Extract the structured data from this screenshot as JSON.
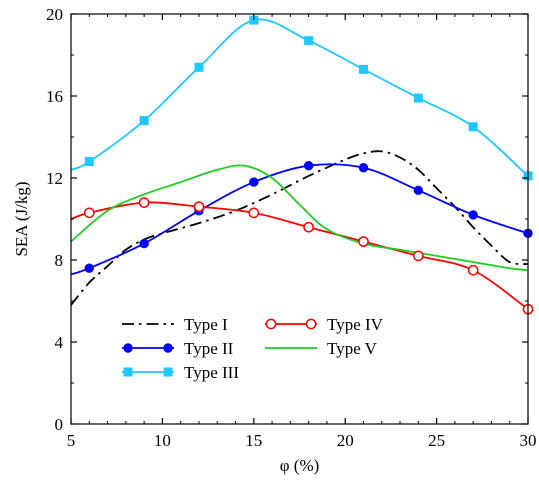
{
  "chart_data": {
    "type": "line",
    "xlabel": "φ (%)",
    "ylabel": "SEA (J/kg)",
    "xlim": [
      5,
      30
    ],
    "ylim": [
      0,
      20
    ],
    "xticks": [
      5,
      10,
      15,
      20,
      25,
      30
    ],
    "yticks": [
      0,
      4,
      8,
      12,
      16,
      20
    ],
    "grid": false,
    "legend_position": "bottom-left",
    "series": [
      {
        "name": "Type I",
        "color": "#000000",
        "style": "dash-dot",
        "marker": "none",
        "x": [
          5,
          6,
          7,
          8,
          9,
          10,
          12,
          14,
          16,
          18,
          20,
          21,
          22,
          23,
          24,
          25,
          26,
          27,
          28,
          29,
          30
        ],
        "y": [
          5.8,
          6.9,
          7.7,
          8.5,
          9.0,
          9.3,
          9.8,
          10.4,
          11.2,
          12.1,
          12.9,
          13.2,
          13.3,
          13.0,
          12.4,
          11.5,
          10.6,
          9.6,
          8.7,
          7.9,
          7.8
        ]
      },
      {
        "name": "Type II",
        "color": "#0000ff",
        "style": "solid",
        "marker": "filled-circle",
        "x": [
          5,
          6,
          9,
          12,
          15,
          18,
          21,
          24,
          27,
          30
        ],
        "y": [
          7.3,
          7.6,
          8.8,
          10.4,
          11.8,
          12.6,
          12.5,
          11.4,
          10.2,
          9.3
        ],
        "marker_x": [
          6,
          9,
          12,
          15,
          18,
          21,
          24,
          27,
          30
        ],
        "marker_y": [
          7.6,
          8.8,
          10.4,
          11.8,
          12.6,
          12.5,
          11.4,
          10.2,
          9.3
        ]
      },
      {
        "name": "Type III",
        "color": "#1ec8ff",
        "style": "solid",
        "marker": "filled-square",
        "x": [
          5,
          6,
          9,
          12,
          15,
          18,
          21,
          24,
          27,
          30
        ],
        "y": [
          12.4,
          12.8,
          14.8,
          17.4,
          19.7,
          18.7,
          17.3,
          15.9,
          14.5,
          12.1
        ],
        "marker_x": [
          6,
          9,
          12,
          15,
          18,
          21,
          24,
          27,
          30
        ],
        "marker_y": [
          12.8,
          14.8,
          17.4,
          19.7,
          18.7,
          17.3,
          15.9,
          14.5,
          12.1
        ]
      },
      {
        "name": "Type IV",
        "color": "#ff0000",
        "style": "solid",
        "marker": "open-circle",
        "x": [
          5,
          6,
          9,
          12,
          15,
          18,
          21,
          24,
          27,
          30
        ],
        "y": [
          10.0,
          10.3,
          10.8,
          10.6,
          10.3,
          9.6,
          8.9,
          8.2,
          7.5,
          5.6
        ],
        "marker_x": [
          6,
          9,
          12,
          15,
          18,
          21,
          24,
          27,
          30
        ],
        "marker_y": [
          10.3,
          10.8,
          10.6,
          10.3,
          9.6,
          8.9,
          8.2,
          7.5,
          5.6
        ]
      },
      {
        "name": "Type V",
        "color": "#22cc22",
        "style": "solid",
        "marker": "none",
        "x": [
          5,
          7,
          9,
          11,
          13,
          14.5,
          16,
          17.5,
          19,
          21,
          23,
          25,
          27,
          29,
          30
        ],
        "y": [
          8.9,
          10.4,
          11.2,
          11.8,
          12.4,
          12.6,
          12.0,
          10.7,
          9.5,
          8.8,
          8.5,
          8.2,
          7.9,
          7.6,
          7.5
        ]
      }
    ]
  }
}
